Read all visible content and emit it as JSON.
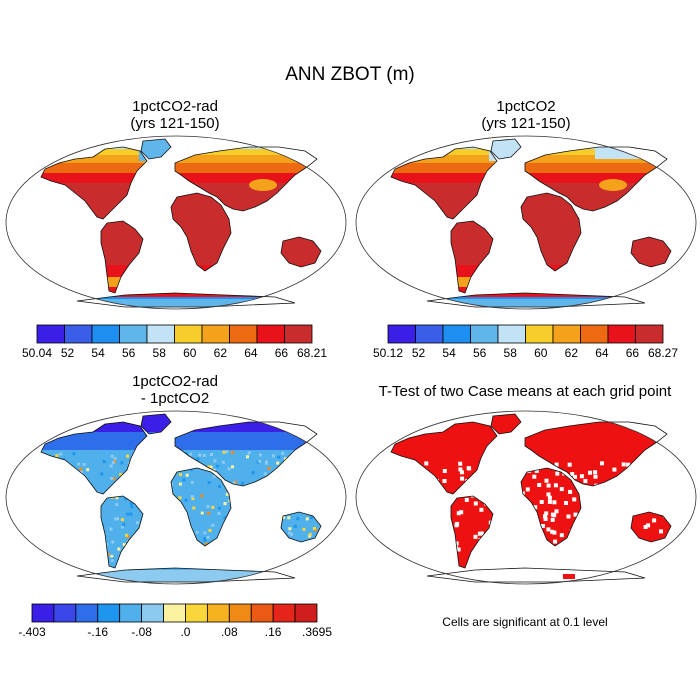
{
  "figure": {
    "title": "ANN ZBOT (m)"
  },
  "panels": [
    {
      "title_line1": "1pctCO2-rad",
      "title_line2": "(yrs 121-150)",
      "colorbar": {
        "labels": [
          "50.04",
          "52",
          "54",
          "56",
          "58",
          "60",
          "62",
          "64",
          "66",
          "68.21"
        ],
        "colors": [
          "#3a1fe6",
          "#3b5ee8",
          "#1e8ff0",
          "#5fb6ea",
          "#c2e3f5",
          "#f6cd2a",
          "#f4a21c",
          "#ee6a12",
          "#e8131a",
          "#c82c2c"
        ]
      }
    },
    {
      "title_line1": "1pctCO2",
      "title_line2": "(yrs 121-150)",
      "colorbar": {
        "labels": [
          "50.12",
          "52",
          "54",
          "56",
          "58",
          "60",
          "62",
          "64",
          "66",
          "68.27"
        ],
        "colors": [
          "#3a1fe6",
          "#3b5ee8",
          "#1e8ff0",
          "#5fb6ea",
          "#c2e3f5",
          "#f6cd2a",
          "#f4a21c",
          "#ee6a12",
          "#e8131a",
          "#c82c2c"
        ]
      }
    },
    {
      "title_line1": "1pctCO2-rad",
      "title_line2": "- 1pctCO2",
      "colorbar": {
        "labels": [
          "-.403",
          "-.16",
          "-.08",
          ".0",
          ".08",
          ".16",
          ".3695"
        ],
        "colors": [
          "#3a1fe6",
          "#3b47e8",
          "#2f6eea",
          "#1e95ef",
          "#4fb0ec",
          "#8ccaf0",
          "#fbf2a0",
          "#f9d63c",
          "#f6b21f",
          "#f08a16",
          "#ea5a14",
          "#e6251a",
          "#d01e1e"
        ]
      }
    },
    {
      "title_line1": "T-Test of two Case means at each grid point",
      "note": "Cells are significant at 0.1 level",
      "significant_color": "#ee1111"
    }
  ]
}
